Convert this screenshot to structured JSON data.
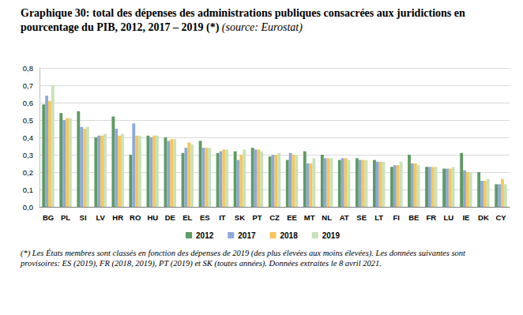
{
  "chart_data": {
    "type": "bar",
    "title": "Graphique 30: total des dépenses des administrations publiques consacrées aux juridictions en pourcentage du PIB, 2012, 2017 – 2019 (*)",
    "subtitle": "(source: Eurostat)",
    "annotations": [
      "(*) Les États membres sont classés en fonction des dépenses de 2019 (des plus élevées aux moins élevées). Les données suivantes sont provisoires: ES (2019), FR (2018, 2019), PT (2019) et SK (toutes années). Données extraites le 8 avril 2021."
    ],
    "categories": [
      "BG",
      "PL",
      "SI",
      "LV",
      "HR",
      "RO",
      "HU",
      "DE",
      "EL",
      "ES",
      "IT",
      "SK",
      "PT",
      "CZ",
      "EE",
      "MT",
      "NL",
      "AT",
      "SE",
      "LT",
      "FI",
      "BE",
      "FR",
      "LU",
      "IE",
      "DK",
      "CY"
    ],
    "series": [
      {
        "name": "2012",
        "color": "#5f9b62",
        "values": [
          0.59,
          0.54,
          0.55,
          0.4,
          0.52,
          0.3,
          0.41,
          0.4,
          0.31,
          0.38,
          0.31,
          0.32,
          0.34,
          0.29,
          0.27,
          0.32,
          0.3,
          0.27,
          0.28,
          0.27,
          0.23,
          0.3,
          0.23,
          0.22,
          0.31,
          0.2,
          0.13
        ]
      },
      {
        "name": "2017",
        "color": "#8ea9db",
        "values": [
          0.64,
          0.5,
          0.46,
          0.41,
          0.45,
          0.48,
          0.4,
          0.38,
          0.34,
          0.34,
          0.32,
          0.27,
          0.33,
          0.3,
          0.31,
          0.25,
          0.28,
          0.28,
          0.27,
          0.26,
          0.24,
          0.25,
          0.23,
          0.22,
          0.21,
          0.15,
          0.13
        ]
      },
      {
        "name": "2018",
        "color": "#f7c65a",
        "values": [
          0.61,
          0.51,
          0.45,
          0.41,
          0.41,
          0.41,
          0.41,
          0.39,
          0.37,
          0.34,
          0.33,
          0.3,
          0.33,
          0.3,
          0.3,
          0.25,
          0.28,
          0.28,
          0.27,
          0.26,
          0.24,
          0.25,
          0.23,
          0.22,
          0.2,
          0.15,
          0.16
        ]
      },
      {
        "name": "2019",
        "color": "#c9e2b8",
        "values": [
          0.7,
          0.51,
          0.46,
          0.42,
          0.42,
          0.41,
          0.41,
          0.39,
          0.36,
          0.34,
          0.33,
          0.33,
          0.32,
          0.31,
          0.3,
          0.28,
          0.28,
          0.27,
          0.27,
          0.26,
          0.26,
          0.24,
          0.23,
          0.23,
          0.2,
          0.16,
          0.13
        ]
      }
    ],
    "ylim": [
      0,
      0.8
    ],
    "yticks": [
      {
        "value": 0,
        "label": "0,0"
      },
      {
        "value": 0.1,
        "label": "0,1"
      },
      {
        "value": 0.2,
        "label": "0,2"
      },
      {
        "value": 0.3,
        "label": "0,3"
      },
      {
        "value": 0.4,
        "label": "0,4"
      },
      {
        "value": 0.5,
        "label": "0,5"
      },
      {
        "value": 0.6,
        "label": "0,6"
      },
      {
        "value": 0.7,
        "label": "0,7"
      },
      {
        "value": 0.8,
        "label": "0,8"
      }
    ],
    "grid": true,
    "legend": "bottom",
    "data_labels": false
  }
}
